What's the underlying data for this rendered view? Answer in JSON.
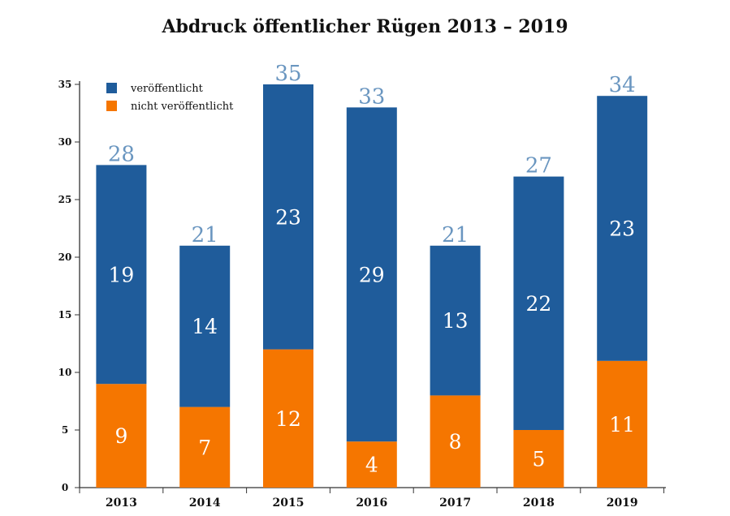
{
  "chart_data": {
    "type": "bar",
    "stacked": true,
    "title": "Abdruck öffentlicher Rügen 2013 – 2019",
    "categories": [
      "2013",
      "2014",
      "2015",
      "2016",
      "2017",
      "2018",
      "2019"
    ],
    "series": [
      {
        "name": "nicht veröffentlicht",
        "color": "#f57600",
        "values": [
          9,
          7,
          12,
          4,
          8,
          5,
          11
        ]
      },
      {
        "name": "veröffentlicht",
        "color": "#1f5c9b",
        "values": [
          19,
          14,
          23,
          29,
          13,
          22,
          23
        ]
      }
    ],
    "totals": [
      28,
      21,
      35,
      33,
      21,
      27,
      34
    ],
    "ylim": [
      0,
      35
    ],
    "yticks": [
      0,
      5,
      10,
      15,
      20,
      25,
      30,
      35
    ],
    "legend_position": "top-left",
    "legend_order": [
      "veröffentlicht",
      "nicht veröffentlicht"
    ],
    "grid": false
  }
}
